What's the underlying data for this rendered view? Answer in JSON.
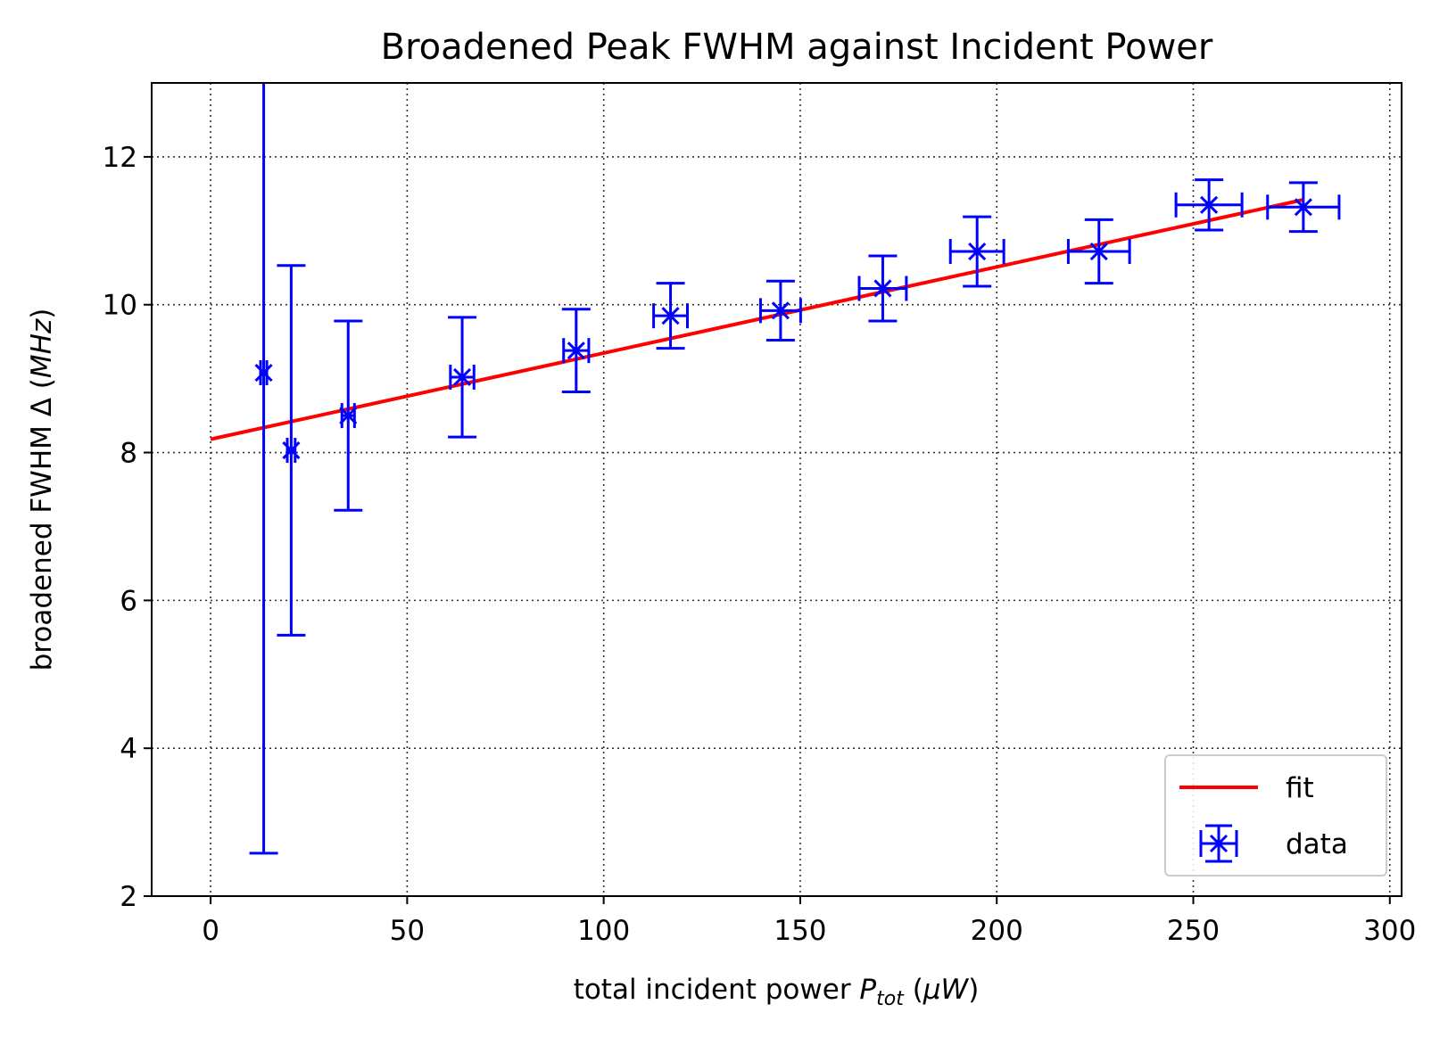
{
  "chart_data": {
    "type": "scatter",
    "title": "Broadened Peak FWHM against Incident Power",
    "xlabel": {
      "prefix": "total incident power ",
      "symbol": "P",
      "sub": "tot",
      "open": " (",
      "unit_mu": "μ",
      "unit_w": "W",
      "close": ")"
    },
    "ylabel": {
      "prefix": "broadened FWHM Δ (",
      "unit": "MHz",
      "close": ")"
    },
    "xlim": [
      -15,
      303
    ],
    "ylim": [
      2,
      13
    ],
    "xticks": [
      0,
      50,
      100,
      150,
      200,
      250,
      300
    ],
    "yticks": [
      2,
      4,
      6,
      8,
      10,
      12
    ],
    "grid": true,
    "legend": {
      "position": "lower-right",
      "entries": [
        "fit",
        "data"
      ]
    },
    "colors": {
      "data": "#0000ff",
      "fit": "#ff0000"
    },
    "series": [
      {
        "name": "data",
        "marker": "x",
        "x": [
          13.5,
          20.5,
          35,
          64,
          93,
          117,
          145,
          171,
          195,
          226,
          254,
          278
        ],
        "y": [
          9.08,
          8.03,
          8.5,
          9.02,
          9.38,
          9.85,
          9.92,
          10.22,
          10.72,
          10.72,
          11.35,
          11.32
        ],
        "xerr": [
          0.8,
          1.0,
          1.6,
          3.0,
          3.2,
          4.3,
          5.1,
          6.0,
          6.8,
          7.8,
          8.4,
          9.1
        ],
        "yerr": [
          6.5,
          2.5,
          1.28,
          0.81,
          0.56,
          0.44,
          0.4,
          0.44,
          0.47,
          0.43,
          0.34,
          0.33
        ]
      },
      {
        "name": "fit",
        "type": "line",
        "x": [
          0,
          278
        ],
        "y": [
          8.18,
          11.42
        ]
      }
    ]
  }
}
